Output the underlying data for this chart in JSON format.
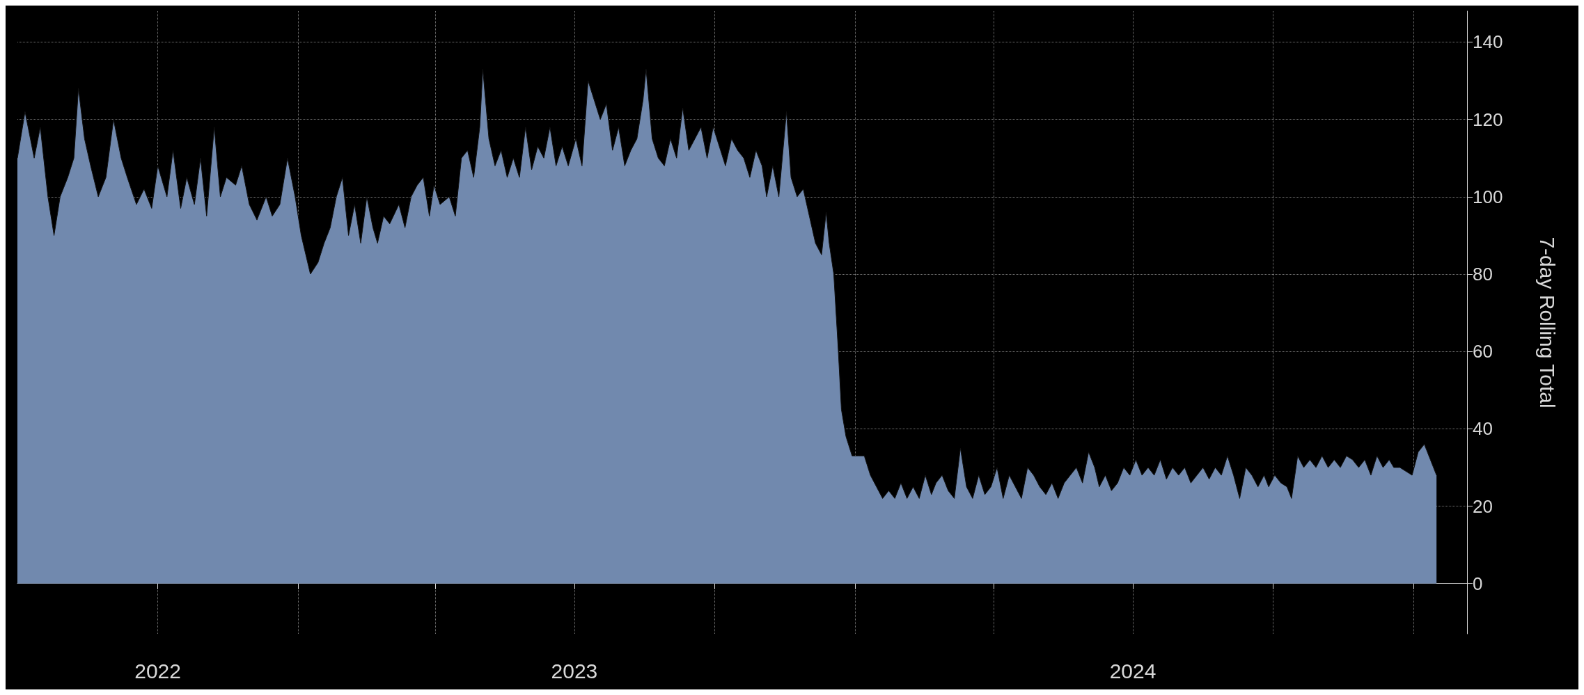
{
  "chart_data": {
    "type": "area",
    "ylabel": "7-day Rolling Total",
    "color": "#7189ae",
    "grid": true,
    "xlim": [
      "2022-07-01",
      "2025-02-05"
    ],
    "xticks": [
      {
        "value": "2022-10-01",
        "label": "2022"
      },
      {
        "value": "2023-01-01",
        "label": null
      },
      {
        "value": "2023-04-01",
        "label": null
      },
      {
        "value": "2023-07-01",
        "label": "2023"
      },
      {
        "value": "2023-10-01",
        "label": null
      },
      {
        "value": "2024-01-01",
        "label": null
      },
      {
        "value": "2024-04-01",
        "label": null
      },
      {
        "value": "2024-07-01",
        "label": "2024"
      },
      {
        "value": "2024-10-01",
        "label": null
      },
      {
        "value": "2025-01-01",
        "label": null
      }
    ],
    "ylim": [
      -13,
      148
    ],
    "yticks": [
      0,
      20,
      40,
      60,
      80,
      100,
      120,
      140
    ],
    "x": [
      "2022-07-01",
      "2022-07-06",
      "2022-07-12",
      "2022-07-16",
      "2022-07-21",
      "2022-07-25",
      "2022-07-29",
      "2022-08-03",
      "2022-08-07",
      "2022-08-10",
      "2022-08-14",
      "2022-08-18",
      "2022-08-23",
      "2022-08-28",
      "2022-09-02",
      "2022-09-07",
      "2022-09-11",
      "2022-09-17",
      "2022-09-22",
      "2022-09-27",
      "2022-10-01",
      "2022-10-07",
      "2022-10-11",
      "2022-10-16",
      "2022-10-20",
      "2022-10-25",
      "2022-10-29",
      "2022-11-02",
      "2022-11-07",
      "2022-11-11",
      "2022-11-15",
      "2022-11-21",
      "2022-11-25",
      "2022-11-30",
      "2022-12-05",
      "2022-12-11",
      "2022-12-15",
      "2022-12-20",
      "2022-12-25",
      "2022-12-30",
      "2023-01-03",
      "2023-01-06",
      "2023-01-09",
      "2023-01-14",
      "2023-01-18",
      "2023-01-22",
      "2023-01-26",
      "2023-01-30",
      "2023-02-03",
      "2023-02-07",
      "2023-02-11",
      "2023-02-15",
      "2023-02-19",
      "2023-02-22",
      "2023-02-26",
      "2023-03-02",
      "2023-03-08",
      "2023-03-12",
      "2023-03-16",
      "2023-03-20",
      "2023-03-24",
      "2023-03-28",
      "2023-03-31",
      "2023-04-04",
      "2023-04-10",
      "2023-04-14",
      "2023-04-18",
      "2023-04-22",
      "2023-04-26",
      "2023-04-30",
      "2023-05-02",
      "2023-05-06",
      "2023-05-10",
      "2023-05-14",
      "2023-05-18",
      "2023-05-22",
      "2023-05-26",
      "2023-05-30",
      "2023-06-03",
      "2023-06-07",
      "2023-06-11",
      "2023-06-15",
      "2023-06-19",
      "2023-06-23",
      "2023-06-27",
      "2023-07-02",
      "2023-07-06",
      "2023-07-10",
      "2023-07-14",
      "2023-07-18",
      "2023-07-22",
      "2023-07-26",
      "2023-07-30",
      "2023-08-03",
      "2023-08-07",
      "2023-08-11",
      "2023-08-15",
      "2023-08-17",
      "2023-08-21",
      "2023-08-25",
      "2023-08-29",
      "2023-09-02",
      "2023-09-06",
      "2023-09-10",
      "2023-09-14",
      "2023-09-18",
      "2023-09-22",
      "2023-09-26",
      "2023-09-30",
      "2023-10-04",
      "2023-10-08",
      "2023-10-12",
      "2023-10-16",
      "2023-10-20",
      "2023-10-24",
      "2023-10-28",
      "2023-11-01",
      "2023-11-04",
      "2023-11-08",
      "2023-11-12",
      "2023-11-17",
      "2023-11-20",
      "2023-11-24",
      "2023-11-28",
      "2023-12-02",
      "2023-12-06",
      "2023-12-10",
      "2023-12-13",
      "2023-12-15",
      "2023-12-18",
      "2023-12-21",
      "2023-12-23",
      "2023-12-26",
      "2023-12-30",
      "2024-01-03",
      "2024-01-07",
      "2024-01-11",
      "2024-01-15",
      "2024-01-19",
      "2024-01-23",
      "2024-01-27",
      "2024-01-31",
      "2024-02-04",
      "2024-02-08",
      "2024-02-12",
      "2024-02-16",
      "2024-02-20",
      "2024-02-23",
      "2024-02-27",
      "2024-03-02",
      "2024-03-06",
      "2024-03-10",
      "2024-03-14",
      "2024-03-18",
      "2024-03-22",
      "2024-03-26",
      "2024-03-30",
      "2024-04-03",
      "2024-04-07",
      "2024-04-11",
      "2024-04-15",
      "2024-04-19",
      "2024-04-23",
      "2024-04-27",
      "2024-05-01",
      "2024-05-05",
      "2024-05-09",
      "2024-05-13",
      "2024-05-17",
      "2024-05-21",
      "2024-05-25",
      "2024-05-29",
      "2024-06-02",
      "2024-06-06",
      "2024-06-09",
      "2024-06-13",
      "2024-06-17",
      "2024-06-21",
      "2024-06-25",
      "2024-06-29",
      "2024-07-03",
      "2024-07-07",
      "2024-07-11",
      "2024-07-15",
      "2024-07-19",
      "2024-07-23",
      "2024-07-27",
      "2024-07-31",
      "2024-08-04",
      "2024-08-08",
      "2024-08-12",
      "2024-08-16",
      "2024-08-20",
      "2024-08-24",
      "2024-08-28",
      "2024-09-01",
      "2024-09-05",
      "2024-09-09",
      "2024-09-13",
      "2024-09-17",
      "2024-09-21",
      "2024-09-25",
      "2024-09-28",
      "2024-10-02",
      "2024-10-06",
      "2024-10-10",
      "2024-10-13",
      "2024-10-17",
      "2024-10-21",
      "2024-10-25",
      "2024-10-29",
      "2024-11-02",
      "2024-11-06",
      "2024-11-10",
      "2024-11-14",
      "2024-11-18",
      "2024-11-22",
      "2024-11-26",
      "2024-11-30",
      "2024-12-04",
      "2024-12-08",
      "2024-12-12",
      "2024-12-16",
      "2024-12-19",
      "2024-12-23",
      "2024-12-27",
      "2024-12-31",
      "2025-01-04",
      "2025-01-08",
      "2025-01-12",
      "2025-01-16"
    ],
    "values": [
      110,
      122,
      110,
      118,
      100,
      90,
      100,
      105,
      110,
      128,
      115,
      108,
      100,
      105,
      120,
      110,
      105,
      98,
      102,
      97,
      108,
      100,
      112,
      97,
      105,
      98,
      110,
      95,
      118,
      100,
      105,
      103,
      108,
      98,
      94,
      100,
      95,
      98,
      110,
      100,
      90,
      85,
      80,
      83,
      88,
      92,
      100,
      105,
      90,
      98,
      88,
      100,
      92,
      88,
      95,
      93,
      98,
      92,
      100,
      103,
      105,
      95,
      103,
      98,
      100,
      95,
      110,
      112,
      105,
      118,
      133,
      115,
      108,
      112,
      105,
      110,
      105,
      118,
      107,
      113,
      110,
      118,
      108,
      113,
      108,
      115,
      108,
      130,
      125,
      120,
      124,
      112,
      118,
      108,
      112,
      115,
      125,
      133,
      115,
      110,
      108,
      115,
      110,
      123,
      112,
      115,
      118,
      110,
      118,
      113,
      108,
      115,
      112,
      110,
      105,
      112,
      108,
      100,
      108,
      100,
      122,
      105,
      100,
      102,
      95,
      88,
      85,
      96,
      88,
      80,
      60,
      45,
      38,
      33,
      33,
      33,
      28,
      25,
      22,
      24,
      22,
      26,
      22,
      25,
      22,
      28,
      23,
      26,
      28,
      24,
      22,
      35,
      25,
      22,
      28,
      23,
      25,
      30,
      22,
      28,
      25,
      22,
      30,
      28,
      25,
      23,
      26,
      22,
      26,
      28,
      30,
      26,
      34,
      30,
      25,
      28,
      24,
      26,
      30,
      28,
      32,
      28,
      30,
      28,
      32,
      27,
      30,
      28,
      30,
      26,
      28,
      30,
      27,
      30,
      28,
      33,
      28,
      22,
      30,
      28,
      25,
      28,
      25,
      28,
      26,
      25,
      22,
      33,
      30,
      32,
      30,
      33,
      30,
      32,
      30,
      33,
      32,
      30,
      32,
      28,
      33,
      30,
      32,
      30,
      30,
      29,
      28,
      34,
      36,
      32,
      28
    ]
  }
}
